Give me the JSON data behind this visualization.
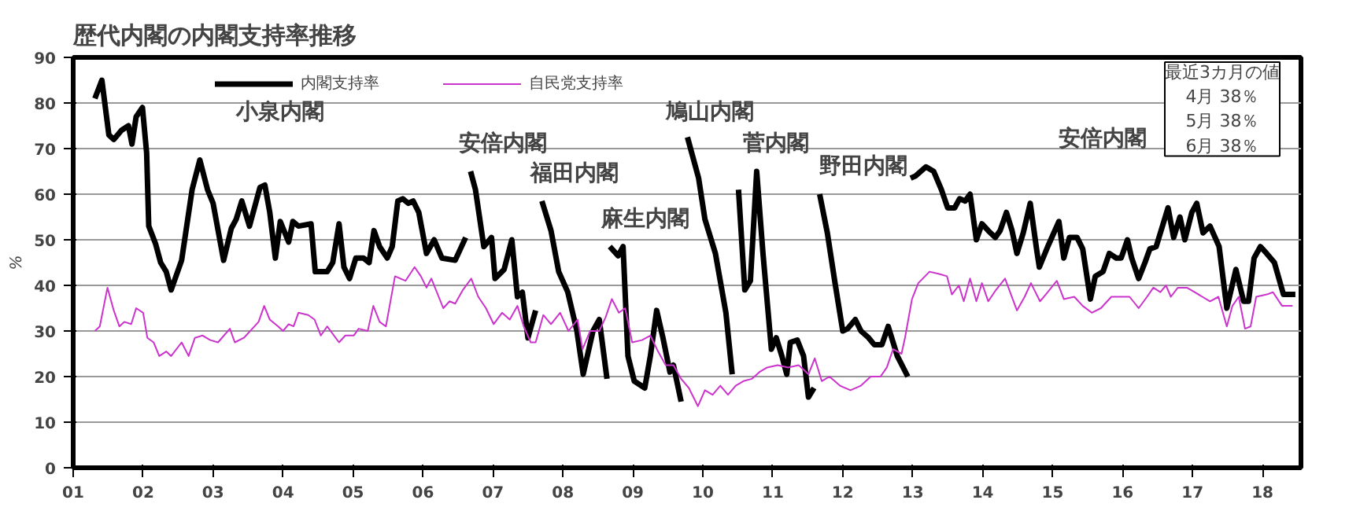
{
  "chart_data": {
    "type": "line",
    "title": "歴代内閣の内閣支持率推移",
    "ylabel": "%",
    "xlim": [
      2001,
      2018.55
    ],
    "ylim": [
      0,
      90
    ],
    "xticks": [
      {
        "value": 2001,
        "label": "01"
      },
      {
        "value": 2002,
        "label": "02"
      },
      {
        "value": 2003,
        "label": "03"
      },
      {
        "value": 2004,
        "label": "04"
      },
      {
        "value": 2005,
        "label": "05"
      },
      {
        "value": 2006,
        "label": "06"
      },
      {
        "value": 2007,
        "label": "07"
      },
      {
        "value": 2008,
        "label": "08"
      },
      {
        "value": 2009,
        "label": "09"
      },
      {
        "value": 2010,
        "label": "10"
      },
      {
        "value": 2011,
        "label": "11"
      },
      {
        "value": 2012,
        "label": "12"
      },
      {
        "value": 2013,
        "label": "13"
      },
      {
        "value": 2014,
        "label": "14"
      },
      {
        "value": 2015,
        "label": "15"
      },
      {
        "value": 2016,
        "label": "16"
      },
      {
        "value": 2017,
        "label": "17"
      },
      {
        "value": 2018,
        "label": "18"
      }
    ],
    "yticks": [
      0,
      10,
      20,
      30,
      40,
      50,
      60,
      70,
      80,
      90
    ],
    "grid": "y",
    "legend": "top",
    "marker": "none",
    "line_style": "solid",
    "series": [
      {
        "name": "内閣支持率",
        "color": "#000000",
        "x": [
          2001.31,
          2001.41,
          2001.51,
          2001.58,
          2001.69,
          2001.79,
          2001.84,
          2001.9,
          2001.99,
          2002.05,
          2002.08,
          2002.18,
          2002.25,
          2002.33,
          2002.4,
          2002.55,
          2002.7,
          2002.81,
          2002.92,
          2003.0,
          2003.15,
          2003.26,
          2003.33,
          2003.41,
          2003.52,
          2003.67,
          2003.74,
          2003.81,
          2003.89,
          2003.96,
          2004.08,
          2004.14,
          2004.22,
          2004.4,
          2004.46,
          2004.63,
          2004.71,
          2004.8,
          2004.87,
          2004.95,
          2005.04,
          2005.15,
          2005.23,
          2005.3,
          2005.38,
          2005.49,
          2005.56,
          2005.64,
          2005.71,
          2005.79,
          2005.86,
          2005.94,
          2006.05,
          2006.16,
          2006.27,
          2006.46,
          2006.61,
          2006.65,
          2006.68,
          2006.75,
          2006.87,
          2006.98,
          2007.03,
          2007.16,
          2007.27,
          2007.35,
          2007.42,
          2007.5,
          2007.61,
          2007.66,
          2007.7,
          2007.83,
          2007.94,
          2008.07,
          2008.2,
          2008.29,
          2008.43,
          2008.52,
          2008.63,
          2008.65,
          2008.67,
          2008.79,
          2008.86,
          2008.93,
          2009.02,
          2009.17,
          2009.25,
          2009.34,
          2009.43,
          2009.53,
          2009.58,
          2009.69,
          2009.74,
          2009.78,
          2009.94,
          2010.03,
          2010.18,
          2010.33,
          2010.42,
          2010.47,
          2010.51,
          2010.6,
          2010.68,
          2010.77,
          2010.86,
          2010.98,
          2011.05,
          2011.13,
          2011.2,
          2011.25,
          2011.35,
          2011.44,
          2011.51,
          2011.59,
          2011.63,
          2011.67,
          2011.78,
          2011.89,
          2012.0,
          2012.07,
          2012.18,
          2012.26,
          2012.37,
          2012.45,
          2012.56,
          2012.65,
          2012.78,
          2012.93,
          2012.95,
          2012.97,
          2013.04,
          2013.19,
          2013.3,
          2013.41,
          2013.5,
          2013.6,
          2013.67,
          2013.75,
          2013.82,
          2013.91,
          2013.99,
          2014.08,
          2014.18,
          2014.25,
          2014.34,
          2014.42,
          2014.49,
          2014.58,
          2014.68,
          2014.77,
          2014.81,
          2014.93,
          2015.09,
          2015.16,
          2015.24,
          2015.35,
          2015.43,
          2015.54,
          2015.61,
          2015.72,
          2015.81,
          2015.91,
          2015.98,
          2016.07,
          2016.13,
          2016.23,
          2016.32,
          2016.39,
          2016.48,
          2016.58,
          2016.65,
          2016.73,
          2016.82,
          2016.89,
          2016.99,
          2017.06,
          2017.15,
          2017.25,
          2017.38,
          2017.49,
          2017.62,
          2017.73,
          2017.8,
          2017.88,
          2017.97,
          2018.06,
          2018.17,
          2018.3,
          2018.47
        ],
        "values": [
          81,
          85,
          73,
          72,
          74,
          75,
          71,
          77,
          79,
          69,
          53,
          49,
          45,
          43,
          39,
          45.5,
          61,
          67.5,
          61,
          58,
          45.5,
          52.5,
          54.5,
          58.5,
          53,
          61.5,
          62,
          56,
          46,
          54,
          49.5,
          54,
          53,
          53.5,
          43,
          43,
          45,
          53.5,
          44,
          41.5,
          46,
          46,
          45,
          52,
          48.5,
          46,
          48.5,
          58.5,
          59,
          58,
          58.5,
          56,
          47,
          50,
          46,
          45.5,
          50.5,
          null,
          65,
          61,
          48.5,
          50.5,
          41.5,
          43.5,
          50,
          37.5,
          38.5,
          28.5,
          34.5,
          null,
          58.5,
          52,
          43,
          38.5,
          30,
          20.5,
          30,
          32.5,
          19.5,
          null,
          48.5,
          46.5,
          48.5,
          24.5,
          19,
          17.5,
          24.5,
          34.5,
          28.5,
          21,
          22.5,
          14.5,
          null,
          72.5,
          63.5,
          54.5,
          47,
          34,
          20.5,
          null,
          61,
          39,
          41,
          65,
          47,
          26,
          28.5,
          24.5,
          20.5,
          27.5,
          28,
          24.5,
          15.5,
          17.5,
          null,
          60,
          51.5,
          40.5,
          30,
          30.5,
          32.5,
          30,
          28.5,
          27,
          27,
          31,
          24.5,
          20,
          null,
          63.5,
          64,
          66,
          65,
          61,
          57,
          57,
          59,
          58.5,
          60,
          50,
          53.5,
          52,
          50.5,
          52,
          56,
          52,
          47,
          51.5,
          58,
          48,
          44,
          48.5,
          54,
          46,
          50.5,
          50.5,
          48,
          37,
          42,
          43,
          47,
          46,
          46,
          50,
          46,
          41.5,
          45,
          48,
          48.5,
          53.5,
          57,
          50.5,
          55,
          50,
          56,
          58,
          51.5,
          53,
          48.5,
          35,
          43.5,
          36.5,
          36.5,
          46,
          48.5,
          47,
          45,
          38,
          38
        ]
      },
      {
        "name": "自民党支持率",
        "color": "#cc33cc",
        "x": [
          2001.31,
          2001.38,
          2001.49,
          2001.58,
          2001.66,
          2001.73,
          2001.83,
          2001.9,
          2002.0,
          2002.06,
          2002.15,
          2002.23,
          2002.33,
          2002.4,
          2002.55,
          2002.65,
          2002.74,
          2002.85,
          2002.96,
          2003.07,
          2003.24,
          2003.31,
          2003.44,
          2003.56,
          2003.65,
          2003.73,
          2003.81,
          2003.93,
          2004.0,
          2004.08,
          2004.15,
          2004.22,
          2004.36,
          2004.45,
          2004.54,
          2004.63,
          2004.8,
          2004.89,
          2005.01,
          2005.08,
          2005.21,
          2005.29,
          2005.38,
          2005.47,
          2005.6,
          2005.75,
          2005.88,
          2005.97,
          2006.05,
          2006.12,
          2006.29,
          2006.38,
          2006.46,
          2006.57,
          2006.69,
          2006.79,
          2006.9,
          2007.01,
          2007.13,
          2007.24,
          2007.35,
          2007.44,
          2007.54,
          2007.61,
          2007.72,
          2007.83,
          2007.96,
          2008.08,
          2008.21,
          2008.28,
          2008.39,
          2008.52,
          2008.61,
          2008.7,
          2008.8,
          2008.89,
          2008.99,
          2009.13,
          2009.25,
          2009.36,
          2009.47,
          2009.58,
          2009.69,
          2009.8,
          2009.93,
          2010.03,
          2010.14,
          2010.25,
          2010.36,
          2010.47,
          2010.58,
          2010.7,
          2010.81,
          2010.92,
          2011.07,
          2011.22,
          2011.37,
          2011.51,
          2011.6,
          2011.7,
          2011.81,
          2011.96,
          2012.11,
          2012.26,
          2012.4,
          2012.54,
          2012.63,
          2012.72,
          2012.84,
          2012.89,
          2012.99,
          2013.08,
          2013.24,
          2013.38,
          2013.49,
          2013.56,
          2013.66,
          2013.73,
          2013.82,
          2013.91,
          2013.99,
          2014.08,
          2014.19,
          2014.32,
          2014.49,
          2014.6,
          2014.69,
          2014.82,
          2014.93,
          2015.06,
          2015.16,
          2015.31,
          2015.43,
          2015.56,
          2015.69,
          2015.84,
          2016.1,
          2016.23,
          2016.35,
          2016.44,
          2016.54,
          2016.62,
          2016.69,
          2016.79,
          2016.92,
          2017.03,
          2017.14,
          2017.25,
          2017.37,
          2017.49,
          2017.57,
          2017.66,
          2017.75,
          2017.83,
          2017.91,
          2018.06,
          2018.15,
          2018.28,
          2018.43
        ],
        "values": [
          30,
          31,
          39.5,
          34.5,
          31,
          32,
          31.5,
          35,
          34,
          28.5,
          27.5,
          24.5,
          25.5,
          24.5,
          27.5,
          24.5,
          28.5,
          29,
          28,
          27.5,
          30.5,
          27.5,
          28.5,
          30.5,
          32,
          35.5,
          32.5,
          31,
          30,
          31.5,
          31,
          34,
          33.5,
          32.5,
          29,
          31,
          27.5,
          29,
          29,
          30.5,
          30,
          35.5,
          32,
          31,
          42,
          41,
          44,
          42,
          39.5,
          41.5,
          35,
          36.5,
          36,
          39,
          41.5,
          37.5,
          35,
          31.5,
          34,
          32.5,
          35.5,
          31,
          27.5,
          27.5,
          33.5,
          31.5,
          34,
          30,
          32.5,
          26,
          30,
          30,
          33,
          37,
          34,
          35,
          27.5,
          28,
          29,
          25.5,
          22.5,
          22.5,
          19.5,
          17.5,
          13.5,
          17,
          16,
          18,
          16,
          18,
          19,
          19.5,
          21,
          22,
          22.5,
          22,
          22.5,
          20.5,
          24,
          19,
          20,
          18,
          17,
          18,
          20,
          20,
          22,
          26,
          25,
          28.5,
          37,
          40.5,
          43,
          42.5,
          42,
          38,
          40,
          36.5,
          41.5,
          36.5,
          40.5,
          36.5,
          39,
          41.5,
          34.5,
          37.5,
          40.5,
          36.5,
          38.5,
          41,
          37,
          37.5,
          35.5,
          34,
          35,
          37.5,
          37.5,
          35,
          37.5,
          39.5,
          38.5,
          40,
          37.5,
          39.5,
          39.5,
          38.5,
          37.5,
          36.5,
          37.5,
          31,
          35.5,
          37.5,
          30.5,
          31,
          37.5,
          38,
          38.5,
          35.5,
          35.5
        ]
      }
    ],
    "annotations": [
      "小泉内閣",
      "安倍内閣",
      "福田内閣",
      "麻生内閣",
      "鳩山内閣",
      "菅内閣",
      "野田内閣",
      "安倍内閣",
      "最近3カ月の値",
      "4月 38％",
      "5月 38％",
      "6月 38％"
    ]
  }
}
